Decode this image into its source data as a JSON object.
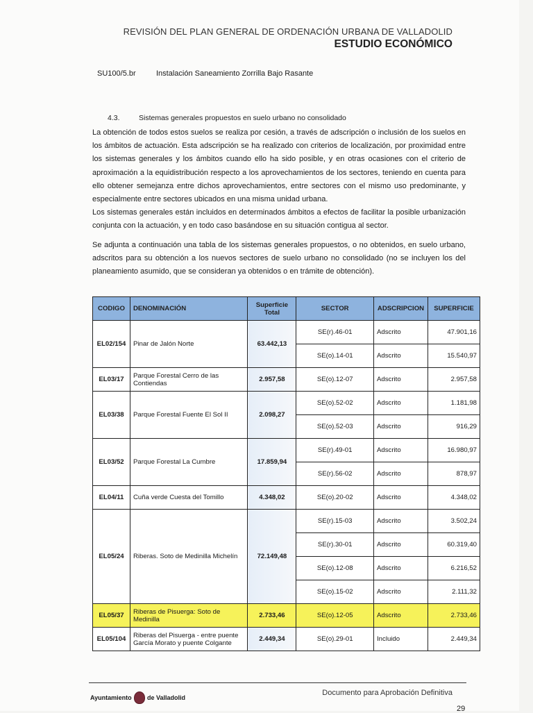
{
  "header": {
    "title": "REVISIÓN DEL PLAN GENERAL DE ORDENACIÓN URBANA DE VALLADOLID",
    "subtitle": "ESTUDIO ECONÓMICO"
  },
  "item": {
    "code": "SU100/5.br",
    "description": "Instalación Saneamiento Zorrilla Bajo Rasante"
  },
  "section": {
    "number": "4.3.",
    "title": "Sistemas generales propuestos en suelo urbano no consolidado"
  },
  "paragraphs": [
    "La obtención de todos estos suelos se realiza por cesión, a través de adscripción o inclusión de los suelos en los ámbitos de actuación. Esta adscripción se ha realizado con criterios de localización, por proximidad entre los sistemas generales y los ámbitos cuando ello ha sido posible, y en otras ocasiones con el criterio de aproximación a la equidistribución respecto a los aprovechamientos de los sectores, teniendo en cuenta para ello obtener semejanza entre dichos aprovechamientos, entre sectores con el mismo uso predominante, y especialmente entre sectores ubicados en una misma unidad urbana.",
    "Los sistemas generales están incluidos en determinados ámbitos a efectos de facilitar la posible urbanización conjunta con la actuación, y en todo caso basándose en su situación contigua al sector.",
    "Se adjunta a continuación una tabla de los sistemas generales propuestos, o no obtenidos, en suelo urbano, adscritos para su obtención a los nuevos sectores de suelo urbano no consolidado (no se incluyen los del planeamiento asumido, que se consideran ya obtenidos o en trámite de obtención)."
  ],
  "table": {
    "headers": [
      "CODIGO",
      "DENOMINACIÓN",
      "Superficie Total",
      "SECTOR",
      "ADSCRIPCION",
      "SUPERFICIE"
    ],
    "highlight_color": "#f6f25a",
    "header_color": "#8eb3de",
    "rows": [
      {
        "codigo": "EL02/154",
        "denominacion": "Pinar de Jalón Norte",
        "total": "63.442,13",
        "sectores": [
          {
            "sector": "SE(r).46-01",
            "adscripcion": "Adscrito",
            "superficie": "47.901,16"
          },
          {
            "sector": "SE(o).14-01",
            "adscripcion": "Adscrito",
            "superficie": "15.540,97"
          }
        ]
      },
      {
        "codigo": "EL03/17",
        "denominacion": "Parque Forestal Cerro de las Contiendas",
        "total": "2.957,58",
        "sectores": [
          {
            "sector": "SE(o).12-07",
            "adscripcion": "Adscrito",
            "superficie": "2.957,58"
          }
        ]
      },
      {
        "codigo": "EL03/38",
        "denominacion": "Parque Forestal Fuente El Sol II",
        "total": "2.098,27",
        "sectores": [
          {
            "sector": "SE(o).52-02",
            "adscripcion": "Adscrito",
            "superficie": "1.181,98"
          },
          {
            "sector": "SE(o).52-03",
            "adscripcion": "Adscrito",
            "superficie": "916,29"
          }
        ]
      },
      {
        "codigo": "EL03/52",
        "denominacion": "Parque Forestal La Cumbre",
        "total": "17.859,94",
        "sectores": [
          {
            "sector": "SE(r).49-01",
            "adscripcion": "Adscrito",
            "superficie": "16.980,97"
          },
          {
            "sector": "SE(r).56-02",
            "adscripcion": "Adscrito",
            "superficie": "878,97"
          }
        ]
      },
      {
        "codigo": "EL04/11",
        "denominacion": "Cuña verde Cuesta del Tomillo",
        "total": "4.348,02",
        "sectores": [
          {
            "sector": "SE(o).20-02",
            "adscripcion": "Adscrito",
            "superficie": "4.348,02"
          }
        ]
      },
      {
        "codigo": "EL05/24",
        "denominacion": "Riberas. Soto de Medinilla Michelín",
        "total": "72.149,48",
        "sectores": [
          {
            "sector": "SE(r).15-03",
            "adscripcion": "Adscrito",
            "superficie": "3.502,24"
          },
          {
            "sector": "SE(r).30-01",
            "adscripcion": "Adscrito",
            "superficie": "60.319,40"
          },
          {
            "sector": "SE(o).12-08",
            "adscripcion": "Adscrito",
            "superficie": "6.216,52"
          },
          {
            "sector": "SE(o).15-02",
            "adscripcion": "Adscrito",
            "superficie": "2.111,32"
          }
        ]
      },
      {
        "codigo": "EL05/37",
        "denominacion": "Riberas de Pisuerga: Soto de Medinilla",
        "total": "2.733,46",
        "highlighted": true,
        "sectores": [
          {
            "sector": "SE(o).12-05",
            "adscripcion": "Adscrito",
            "superficie": "2.733,46"
          }
        ]
      },
      {
        "codigo": "EL05/104",
        "denominacion": "Riberas del Pisuerga - entre puente García Morato y puente Colgante",
        "total": "2.449,34",
        "sectores": [
          {
            "sector": "SE(o).29-01",
            "adscripcion": "Incluido",
            "superficie": "2.449,34"
          }
        ]
      }
    ]
  },
  "footer": {
    "logo_left": "Ayuntamiento",
    "logo_right": "de Valladolid",
    "document_status": "Documento para Aprobación Definitiva",
    "page_number": "29"
  }
}
